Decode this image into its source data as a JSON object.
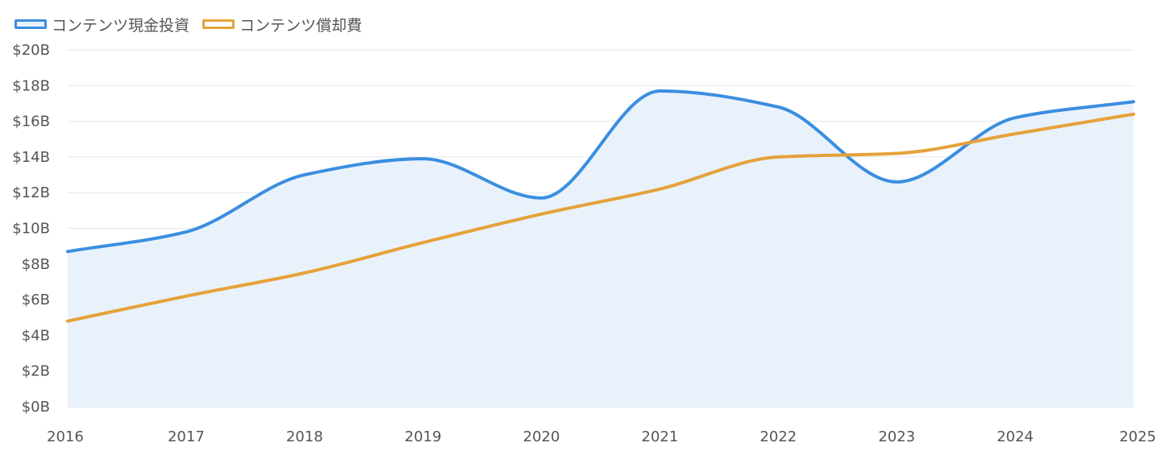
{
  "chart_data": {
    "type": "line",
    "title": "",
    "xlabel": "",
    "ylabel": "",
    "categories": [
      "2016",
      "2017",
      "2018",
      "2019",
      "2020",
      "2021",
      "2022",
      "2023",
      "2024",
      "2025"
    ],
    "yticks": [
      "$0B",
      "$2B",
      "$4B",
      "$6B",
      "$8B",
      "$10B",
      "$12B",
      "$14B",
      "$16B",
      "$18B",
      "$20B"
    ],
    "ylim": [
      0,
      20
    ],
    "grid": true,
    "legend_position": "top-left",
    "series": [
      {
        "name": "コンテンツ現金投資",
        "color": "#3b8ee0",
        "fill": "#e9f2fb",
        "area": true,
        "values": [
          8.7,
          9.8,
          13.0,
          13.9,
          11.7,
          17.7,
          16.8,
          12.6,
          16.2,
          17.1
        ]
      },
      {
        "name": "コンテンツ償却費",
        "color": "#e5a23a",
        "area": false,
        "values": [
          4.8,
          6.2,
          7.5,
          9.2,
          10.8,
          12.2,
          14.0,
          14.2,
          15.3,
          16.4
        ]
      }
    ]
  }
}
